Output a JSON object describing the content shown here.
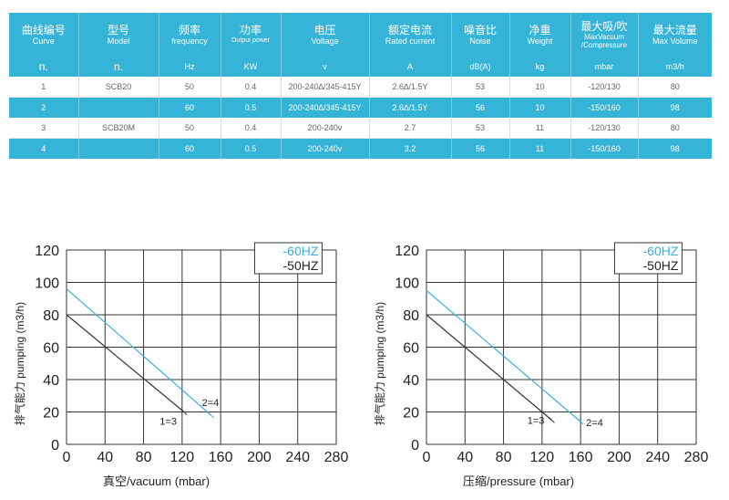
{
  "table": {
    "headers": [
      {
        "zh": "曲线编号",
        "en": "Curve",
        "unit": "n."
      },
      {
        "zh": "型号",
        "en": "Model",
        "unit": "n."
      },
      {
        "zh": "频率",
        "en": "frequency",
        "unit": "Hz"
      },
      {
        "zh": "功率",
        "en": "Output power",
        "unit": "KW"
      },
      {
        "zh": "电压",
        "en": "Voltage",
        "unit": "v"
      },
      {
        "zh": "额定电流",
        "en": "Rated current",
        "unit": "A"
      },
      {
        "zh": "噪音比",
        "en": "Noise",
        "unit": "dB(A)"
      },
      {
        "zh": "净重",
        "en": "Weight",
        "unit": "kg"
      },
      {
        "zh": "最大吸/吹",
        "en": "MaxVacuum /Compressure",
        "unit": "mbar"
      },
      {
        "zh": "最大流量",
        "en": "Max Volume",
        "unit": "m3/h"
      }
    ],
    "rows": [
      [
        "1",
        "SCB20",
        "50",
        "0.4",
        "200-240∆/345-415Y",
        "2.6∆/1.5Y",
        "53",
        "10",
        "-120/130",
        "80"
      ],
      [
        "2",
        "",
        "60",
        "0.5",
        "200-240∆/345-415Y",
        "2.6∆/1.5Y",
        "56",
        "10",
        "-150/160",
        "98"
      ],
      [
        "3",
        "SCB20M",
        "50",
        "0.4",
        "200-240v",
        "2.7",
        "53",
        "11",
        "-120/130",
        "80"
      ],
      [
        "4",
        "",
        "60",
        "0.5",
        "200-240v",
        "3.2",
        "56",
        "11",
        "-150/160",
        "98"
      ]
    ]
  },
  "colors": {
    "accent": "#36b4d7",
    "line60": "#3aaee0",
    "line50": "#333333",
    "grid": "#333333"
  },
  "chart_data": [
    {
      "type": "line",
      "title": "",
      "xlabel": "真空/vacuum  (mbar)",
      "ylabel": "排气能力 pumping  (m3/h)",
      "xlim": [
        0,
        280
      ],
      "ylim": [
        0,
        120
      ],
      "xticks": [
        0,
        40,
        80,
        120,
        160,
        200,
        240,
        280
      ],
      "yticks": [
        0,
        20,
        40,
        60,
        80,
        100,
        120
      ],
      "grid": true,
      "legend": [
        "-60HZ",
        "-50HZ"
      ],
      "legend_position": "top-right",
      "series": [
        {
          "name": "-60HZ",
          "color": "#3aaee0",
          "x": [
            0,
            150
          ],
          "y": [
            96,
            18
          ],
          "label": "2=4"
        },
        {
          "name": "-50HZ",
          "color": "#333333",
          "x": [
            0,
            122
          ],
          "y": [
            80,
            20
          ],
          "label": "1=3"
        }
      ]
    },
    {
      "type": "line",
      "title": "",
      "xlabel": "压缩/pressure  (mbar)",
      "ylabel": "排气能力 pumping  (m3/h)",
      "xlim": [
        0,
        280
      ],
      "ylim": [
        0,
        120
      ],
      "xticks": [
        0,
        40,
        80,
        120,
        160,
        200,
        240,
        280
      ],
      "yticks": [
        0,
        20,
        40,
        60,
        80,
        100,
        120
      ],
      "grid": true,
      "legend": [
        "-60HZ",
        "-50HZ"
      ],
      "legend_position": "top-right",
      "series": [
        {
          "name": "-60HZ",
          "color": "#3aaee0",
          "x": [
            0,
            160
          ],
          "y": [
            95,
            14
          ],
          "label": "2=4"
        },
        {
          "name": "-50HZ",
          "color": "#333333",
          "x": [
            0,
            130
          ],
          "y": [
            80,
            15
          ],
          "label": "1=3"
        }
      ]
    }
  ]
}
